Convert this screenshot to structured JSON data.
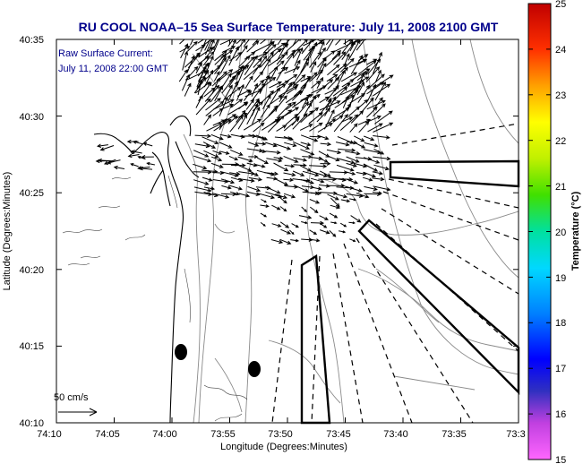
{
  "title": "RU COOL  NOAA–15  Sea Surface Temperature:  July 11, 2008 2100 GMT",
  "inset": {
    "line1": "Raw Surface Current:",
    "line2": "July 11, 2008 22:00 GMT"
  },
  "scale_label": "50 cm/s",
  "axes": {
    "xlabel": "Longitude (Degrees:Minutes)",
    "ylabel": "Latitude (Degrees:Minutes)",
    "x_ticks": [
      "74:10",
      "74:05",
      "74:00",
      "73:55",
      "73:50",
      "73:45",
      "73:40",
      "73:35",
      "73:3"
    ],
    "y_ticks": [
      "40:35",
      "40:30",
      "40:25",
      "40:20",
      "40:15",
      "40:10"
    ]
  },
  "colorbar": {
    "label": "Temperature (°C)",
    "min": 15,
    "max": 25,
    "ticks": [
      "25",
      "24",
      "23",
      "22",
      "21",
      "20",
      "19",
      "18",
      "17",
      "16",
      "15"
    ]
  },
  "colors": {
    "title": "#00008b",
    "frame": "#000000",
    "contour": "#808080",
    "coast": "#000000"
  }
}
